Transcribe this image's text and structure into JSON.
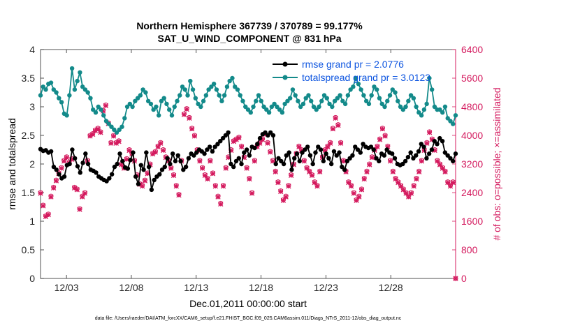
{
  "chart_data": {
    "type": "line",
    "title_line1": "Northern Hemisphere 367739 / 370789 = 99.177%",
    "title_line2": "SAT_U_WIND_COMPONENT @ 831 hPa",
    "xlabel": "Dec.01,2011 00:00:00 start",
    "ylabel_left": "rmse and totalspread",
    "ylabel_right": "# of obs: o=possible; ×=assimilated",
    "footnote": "data file: /Users/raeder/DAI/ATM_forcXX/CAM6_setup/f.e21.FHIST_BGC.f09_025.CAM6assim.011/Diags_NTrS_2011-12/obs_diag_output.nc",
    "xlim": [
      1,
      33
    ],
    "ylim_left": [
      0,
      4
    ],
    "ylim_right": [
      0,
      6400
    ],
    "x_ticks": [
      3,
      8,
      13,
      18,
      23,
      28
    ],
    "x_tick_labels": [
      "12/03",
      "12/08",
      "12/13",
      "12/18",
      "12/23",
      "12/28"
    ],
    "y_left_ticks": [
      0,
      0.5,
      1,
      1.5,
      2,
      2.5,
      3,
      3.5,
      4
    ],
    "y_left_tick_labels": [
      "0",
      "0.5",
      "1",
      "1.5",
      "2",
      "2.5",
      "3",
      "3.5",
      "4"
    ],
    "y_right_ticks": [
      0,
      800,
      1600,
      2400,
      3200,
      4000,
      4800,
      5600,
      6400
    ],
    "y_right_tick_labels": [
      "0",
      "800",
      "1600",
      "2400",
      "3200",
      "4000",
      "4800",
      "5600",
      "6400"
    ],
    "colors": {
      "rmse": "#000000",
      "spread": "#138a8a",
      "obs": "#d41a5e",
      "legend_text": "#0d55e0",
      "right_axis": "#d41a5e"
    },
    "legend": [
      {
        "name": "rmse grand pr = 2.0776",
        "color": "#000000"
      },
      {
        "name": "totalspread grand pr = 3.0123",
        "color": "#138a8a"
      }
    ],
    "series": [
      {
        "name": "rmse",
        "axis": "left",
        "values": [
          2.26,
          2.23,
          2.24,
          2.2,
          2.22,
          1.95,
          1.9,
          1.82,
          1.75,
          1.78,
          1.98,
          2.0,
          2.25,
          2.1,
          1.96,
          1.85,
          2.02,
          2.18,
          2.0,
          1.9,
          1.88,
          1.85,
          1.78,
          1.75,
          1.72,
          1.7,
          1.75,
          1.82,
          1.95,
          2.0,
          2.18,
          2.05,
          1.94,
          1.92,
          2.07,
          2.2,
          1.78,
          1.65,
          1.98,
          1.9,
          2.2,
          1.95,
          1.55,
          1.72,
          1.78,
          1.82,
          1.9,
          1.95,
          2.1,
          2.0,
          2.18,
          2.05,
          2.15,
          2.05,
          1.9,
          1.95,
          2.1,
          2.18,
          2.15,
          2.2,
          2.25,
          2.22,
          2.18,
          2.25,
          2.3,
          2.22,
          2.3,
          2.35,
          2.4,
          2.45,
          2.5,
          2.55,
          2.0,
          1.95,
          2.05,
          2.1,
          2.0,
          2.2,
          2.25,
          2.15,
          2.3,
          2.28,
          2.35,
          2.45,
          2.52,
          2.55,
          2.5,
          2.55,
          2.5,
          2.0,
          2.1,
          2.05,
          2.0,
          2.15,
          2.2,
          1.9,
          2.1,
          2.18,
          2.05,
          2.2,
          2.25,
          2.3,
          2.15,
          2.0,
          2.2,
          2.3,
          2.25,
          2.05,
          2.18,
          2.1,
          2.0,
          2.22,
          2.15,
          2.2,
          1.95,
          1.9,
          2.05,
          2.1,
          2.15,
          2.3,
          2.25,
          2.2,
          2.35,
          2.3,
          2.28,
          2.3,
          2.25,
          2.1,
          2.05,
          2.18,
          2.15,
          2.25,
          2.2,
          2.18,
          2.1,
          2.0,
          1.98,
          2.0,
          2.05,
          2.12,
          2.2,
          2.1,
          2.15,
          2.22,
          2.35,
          2.3,
          2.1,
          2.18,
          2.25,
          2.4,
          2.35,
          2.45,
          2.4,
          2.2,
          2.15,
          2.1,
          2.05,
          2.18
        ]
      },
      {
        "name": "totalspread",
        "axis": "left",
        "values": [
          3.2,
          3.35,
          3.3,
          3.4,
          3.42,
          3.3,
          3.25,
          3.15,
          3.08,
          2.88,
          2.85,
          3.2,
          3.67,
          3.3,
          3.45,
          3.6,
          3.35,
          3.3,
          3.25,
          3.15,
          2.95,
          2.9,
          3.0,
          2.95,
          2.85,
          2.75,
          2.7,
          2.65,
          2.6,
          2.55,
          2.6,
          2.65,
          2.8,
          3.0,
          3.05,
          3.0,
          3.1,
          3.15,
          3.2,
          3.3,
          3.25,
          3.1,
          3.05,
          2.95,
          3.0,
          2.85,
          3.1,
          3.15,
          3.05,
          2.95,
          2.85,
          3.0,
          3.1,
          3.2,
          3.35,
          3.3,
          3.2,
          3.45,
          3.3,
          3.15,
          3.05,
          3.0,
          3.1,
          3.2,
          3.3,
          3.35,
          3.4,
          3.3,
          3.2,
          3.1,
          3.2,
          3.35,
          3.45,
          3.5,
          3.35,
          3.3,
          3.2,
          3.1,
          3.0,
          2.95,
          2.9,
          3.0,
          3.1,
          3.2,
          3.1,
          3.0,
          2.95,
          2.9,
          3.0,
          3.05,
          3.0,
          2.95,
          2.9,
          3.05,
          3.1,
          3.15,
          3.3,
          3.2,
          3.1,
          3.0,
          3.05,
          3.15,
          3.2,
          3.1,
          3.0,
          2.95,
          3.0,
          3.1,
          3.2,
          3.15,
          3.05,
          3.0,
          3.1,
          3.15,
          3.2,
          3.1,
          3.05,
          3.2,
          3.3,
          3.35,
          3.5,
          3.4,
          3.3,
          3.2,
          3.1,
          3.05,
          3.2,
          3.35,
          3.3,
          3.15,
          3.05,
          3.0,
          3.1,
          3.2,
          3.3,
          3.25,
          3.1,
          3.0,
          2.95,
          3.0,
          3.1,
          3.2,
          3.15,
          3.0,
          2.9,
          2.85,
          2.95,
          3.05,
          3.5,
          3.3,
          3.0,
          2.95,
          2.95,
          2.9,
          3.0,
          2.8,
          2.75,
          2.7,
          2.85
        ]
      },
      {
        "name": "obs possible (o)",
        "axis": "right",
        "marker": "o",
        "values": [
          2400,
          2050,
          1750,
          1800,
          2300,
          2550,
          2750,
          2950,
          3100,
          3300,
          3400,
          3250,
          3350,
          2550,
          2500,
          1950,
          2300,
          2400,
          3300,
          4000,
          4050,
          4150,
          4200,
          4100,
          4700,
          4850,
          4350,
          3800,
          4000,
          3800,
          3850,
          3200,
          3100,
          3350,
          3600,
          3500,
          3300,
          2900,
          2650,
          2600,
          2750,
          2950,
          3200,
          3500,
          3550,
          3700,
          3800,
          3600,
          3400,
          3300,
          3100,
          2900,
          2600,
          2350,
          3300,
          4600,
          4750,
          4500,
          4200,
          4000,
          3600,
          3300,
          3100,
          2900,
          2800,
          3300,
          2950,
          2600,
          2300,
          2100,
          2600,
          3100,
          3400,
          3600,
          3850,
          3900,
          3950,
          3700,
          3400,
          3100,
          2800,
          2400,
          3300,
          3700,
          3800,
          3900,
          4050,
          3800,
          3550,
          3300,
          3000,
          2700,
          2450,
          2200,
          2300,
          2600,
          2900,
          3200,
          3500,
          3700,
          3600,
          3300,
          3100,
          3000,
          2900,
          2700,
          2600,
          3000,
          3400,
          3600,
          3700,
          3800,
          4200,
          4500,
          4300,
          3800,
          3300,
          3000,
          2700,
          2600,
          2400,
          2200,
          2300,
          2500,
          2800,
          3000,
          3200,
          3400,
          3600,
          3700,
          3900,
          4200,
          4000,
          3700,
          3300,
          3000,
          2800,
          2700,
          2600,
          2500,
          2400,
          2300,
          2400,
          2600,
          2800,
          3000,
          3300,
          3600,
          3800,
          4100,
          3900,
          3600,
          3300,
          3200,
          3100,
          3000,
          2700,
          2600,
          2700,
          0
        ]
      },
      {
        "name": "obs assimilated (×)",
        "axis": "right",
        "marker": "x",
        "values": [
          2380,
          2030,
          1730,
          1780,
          2280,
          2530,
          2730,
          2930,
          3080,
          3280,
          3380,
          3230,
          3330,
          2530,
          2480,
          1930,
          2280,
          2380,
          3280,
          3980,
          4030,
          4130,
          4180,
          4080,
          4680,
          4830,
          4330,
          3780,
          3980,
          3780,
          3830,
          3180,
          3080,
          3330,
          3580,
          3480,
          3280,
          2880,
          2630,
          2580,
          2730,
          2930,
          3180,
          3480,
          3530,
          3680,
          3780,
          3580,
          3380,
          3280,
          3080,
          2880,
          2580,
          2330,
          3280,
          4580,
          4730,
          4480,
          4180,
          3980,
          3580,
          3280,
          3080,
          2880,
          2780,
          3280,
          2930,
          2580,
          2280,
          2080,
          2580,
          3080,
          3380,
          3580,
          3830,
          3880,
          3930,
          3680,
          3380,
          3080,
          2780,
          2380,
          3280,
          3680,
          3780,
          3880,
          4030,
          3780,
          3530,
          3280,
          2980,
          2680,
          2430,
          2180,
          2280,
          2580,
          2880,
          3180,
          3480,
          3680,
          3580,
          3280,
          3080,
          2980,
          2880,
          2680,
          2580,
          2980,
          3380,
          3580,
          3680,
          3780,
          4180,
          4480,
          4280,
          3780,
          3280,
          2980,
          2680,
          2580,
          2380,
          2180,
          2280,
          2480,
          2780,
          2980,
          3180,
          3380,
          3580,
          3680,
          3880,
          4180,
          3980,
          3680,
          3280,
          2980,
          2780,
          2680,
          2580,
          2480,
          2380,
          2280,
          2380,
          2580,
          2780,
          2980,
          3280,
          3580,
          3780,
          4080,
          3880,
          3580,
          3280,
          3180,
          3080,
          2980,
          2680,
          2580,
          2680,
          0
        ]
      }
    ]
  }
}
